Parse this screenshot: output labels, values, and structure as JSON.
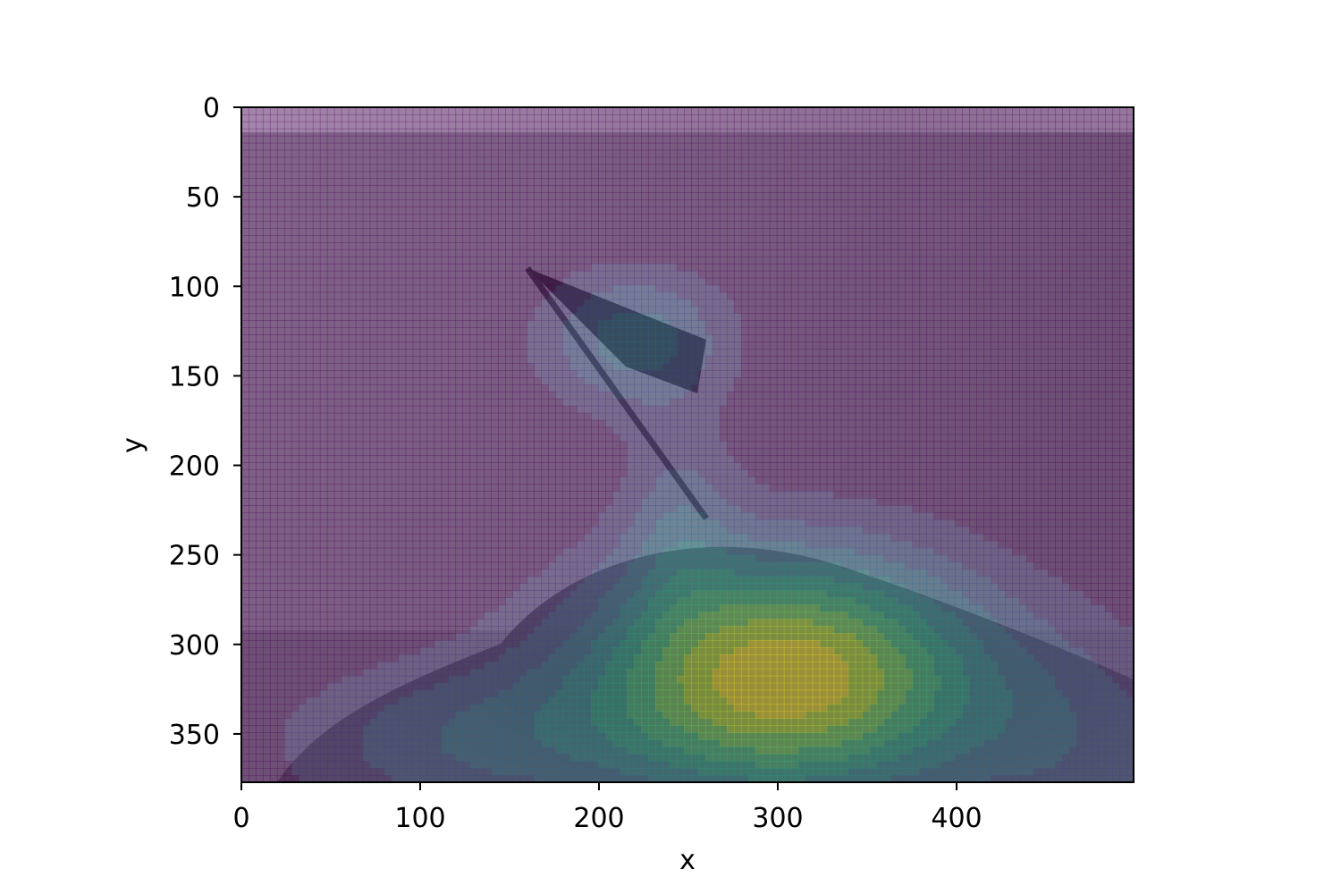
{
  "chart_data": {
    "type": "heatmap",
    "subtype": "density-contour-over-image",
    "title": "",
    "xlabel": "x",
    "ylabel": "y",
    "xlim": [
      0,
      499
    ],
    "ylim": [
      377,
      0
    ],
    "y_inverted": true,
    "xticks": [
      0,
      100,
      200,
      300,
      400
    ],
    "yticks": [
      0,
      50,
      100,
      150,
      200,
      250,
      300,
      350
    ],
    "grid": false,
    "legend": "none",
    "colormap": "viridis",
    "overlay_alpha": 0.45,
    "background": "grayscale photo: flag on a pole over a shrub and distant sea horizon",
    "contour_levels": [
      0.1,
      0.2,
      0.3,
      0.4,
      0.5,
      0.6,
      0.7,
      0.8,
      0.9
    ],
    "density_components": [
      {
        "x": 305,
        "y": 318,
        "sx": 78,
        "sy": 48,
        "weight": 1.0
      },
      {
        "x": 220,
        "y": 130,
        "sx": 38,
        "sy": 28,
        "weight": 0.36
      },
      {
        "x": 130,
        "y": 355,
        "sx": 75,
        "sy": 32,
        "weight": 0.28
      },
      {
        "x": 470,
        "y": 360,
        "sx": 55,
        "sy": 45,
        "weight": 0.22
      },
      {
        "x": 245,
        "y": 230,
        "sx": 22,
        "sy": 40,
        "weight": 0.2
      }
    ]
  }
}
